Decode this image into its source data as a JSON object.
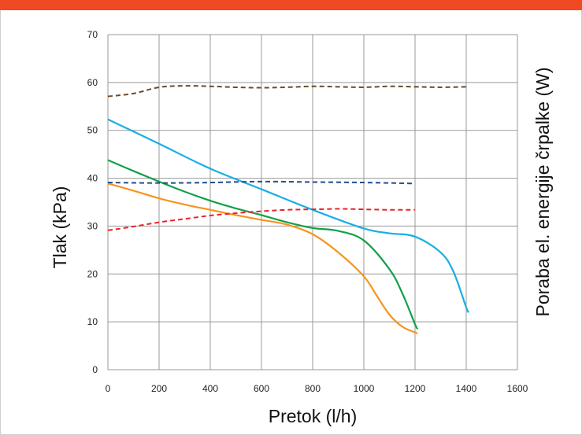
{
  "colors": {
    "top_bar": "#F04A23",
    "grid": "#9A9A9A",
    "series": {
      "blue_solid": "#1AAEE5",
      "green_solid": "#13A04A",
      "orange_solid": "#F7941D",
      "brown_dashed": "#6B4A2B",
      "navy_dashed": "#1F4E8C",
      "red_dashed": "#E8232A"
    }
  },
  "chart_data": {
    "type": "line",
    "title": "",
    "xlabel": "Pretok (l/h)",
    "ylabel": "Tlak (kPa)",
    "y2label": "Poraba el. energije črpalke (W)",
    "xlim": [
      0,
      1600
    ],
    "ylim": [
      0,
      70
    ],
    "x_ticks": [
      "0",
      "200",
      "400",
      "600",
      "800",
      "1000",
      "1200",
      "1400",
      "1600"
    ],
    "y_ticks": [
      "0",
      "10",
      "20",
      "30",
      "40",
      "50",
      "60",
      "70"
    ],
    "grid": true,
    "legend": "none",
    "series": [
      {
        "color_key": "blue_solid",
        "dash": false,
        "points": [
          [
            0,
            52.3
          ],
          [
            200,
            47.2
          ],
          [
            400,
            42.0
          ],
          [
            600,
            37.7
          ],
          [
            800,
            33.4
          ],
          [
            1000,
            29.5
          ],
          [
            1100,
            28.5
          ],
          [
            1200,
            27.8
          ],
          [
            1300,
            24.5
          ],
          [
            1350,
            20.5
          ],
          [
            1400,
            13.0
          ],
          [
            1410,
            12.0
          ]
        ]
      },
      {
        "color_key": "green_solid",
        "dash": false,
        "points": [
          [
            0,
            43.8
          ],
          [
            100,
            41.5
          ],
          [
            200,
            39.3
          ],
          [
            300,
            37.2
          ],
          [
            400,
            35.3
          ],
          [
            500,
            33.7
          ],
          [
            600,
            32.3
          ],
          [
            700,
            30.8
          ],
          [
            800,
            29.6
          ],
          [
            900,
            29.0
          ],
          [
            1000,
            27.0
          ],
          [
            1100,
            21.0
          ],
          [
            1150,
            16.0
          ],
          [
            1200,
            9.5
          ],
          [
            1210,
            8.5
          ]
        ]
      },
      {
        "color_key": "orange_solid",
        "dash": false,
        "points": [
          [
            0,
            38.9
          ],
          [
            100,
            37.4
          ],
          [
            200,
            35.8
          ],
          [
            300,
            34.5
          ],
          [
            400,
            33.4
          ],
          [
            500,
            32.3
          ],
          [
            600,
            31.3
          ],
          [
            700,
            30.3
          ],
          [
            800,
            28.3
          ],
          [
            900,
            24.5
          ],
          [
            1000,
            19.5
          ],
          [
            1050,
            15.5
          ],
          [
            1100,
            11.5
          ],
          [
            1150,
            9.0
          ],
          [
            1200,
            7.8
          ],
          [
            1210,
            7.6
          ]
        ]
      },
      {
        "color_key": "brown_dashed",
        "dash": true,
        "points": [
          [
            0,
            57.1
          ],
          [
            100,
            57.7
          ],
          [
            200,
            59.0
          ],
          [
            300,
            59.3
          ],
          [
            400,
            59.2
          ],
          [
            500,
            59.0
          ],
          [
            600,
            58.9
          ],
          [
            700,
            59.0
          ],
          [
            800,
            59.2
          ],
          [
            900,
            59.1
          ],
          [
            1000,
            59.0
          ],
          [
            1100,
            59.2
          ],
          [
            1200,
            59.1
          ],
          [
            1300,
            59.0
          ],
          [
            1400,
            59.1
          ]
        ]
      },
      {
        "color_key": "navy_dashed",
        "dash": true,
        "points": [
          [
            0,
            39.1
          ],
          [
            200,
            39.0
          ],
          [
            400,
            39.1
          ],
          [
            600,
            39.3
          ],
          [
            800,
            39.2
          ],
          [
            1000,
            39.1
          ],
          [
            1200,
            38.9
          ]
        ]
      },
      {
        "color_key": "red_dashed",
        "dash": true,
        "points": [
          [
            0,
            29.1
          ],
          [
            100,
            29.9
          ],
          [
            200,
            30.8
          ],
          [
            300,
            31.5
          ],
          [
            400,
            32.2
          ],
          [
            500,
            32.7
          ],
          [
            600,
            33.1
          ],
          [
            700,
            33.4
          ],
          [
            800,
            33.5
          ],
          [
            900,
            33.6
          ],
          [
            1000,
            33.5
          ],
          [
            1100,
            33.4
          ],
          [
            1200,
            33.4
          ]
        ]
      }
    ]
  }
}
